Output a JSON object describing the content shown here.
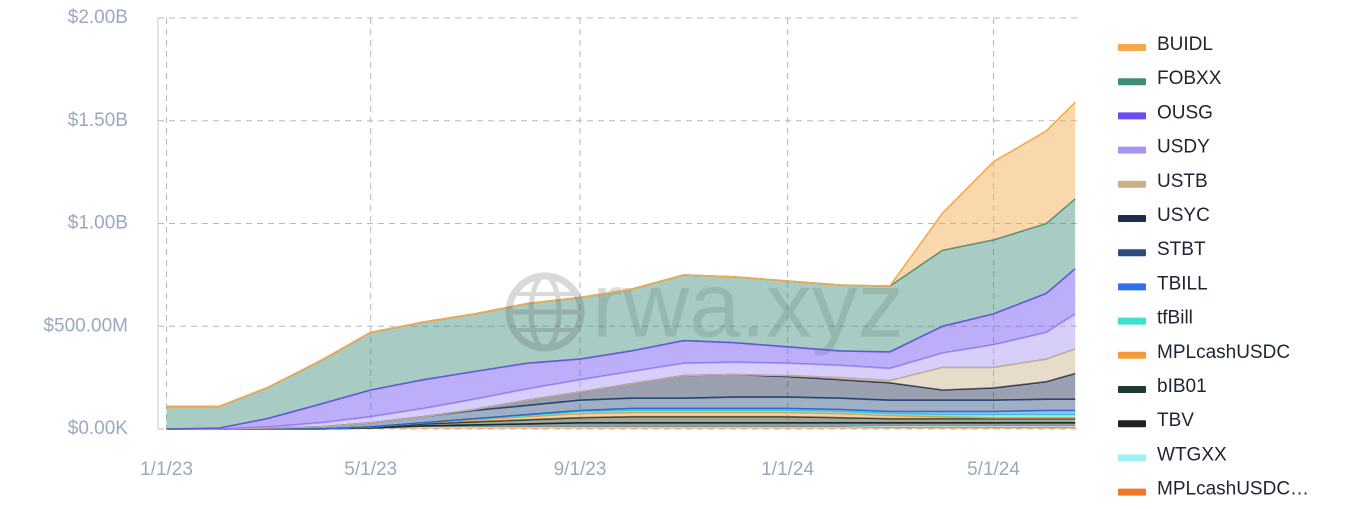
{
  "chart_data": {
    "type": "stacked_area",
    "watermark": "rwa.xyz",
    "x": [
      "1/1/23",
      "2/1/23",
      "3/1/23",
      "4/1/23",
      "5/1/23",
      "6/1/23",
      "7/1/23",
      "8/1/23",
      "9/1/23",
      "10/1/23",
      "11/1/23",
      "12/1/23",
      "1/1/24",
      "2/1/24",
      "3/1/24",
      "4/1/24",
      "5/1/24",
      "6/1/24",
      "6/18/24"
    ],
    "xlim": [
      "12/27/22",
      "6/22/24"
    ],
    "xticks": [
      "1/1/23",
      "5/1/23",
      "9/1/23",
      "1/1/24",
      "5/1/24"
    ],
    "ylim": [
      0,
      2000000000
    ],
    "yticks": [
      {
        "value": 0,
        "label": "$0.00K"
      },
      {
        "value": 500000000,
        "label": "$500.00M"
      },
      {
        "value": 1000000000,
        "label": "$1.00B"
      },
      {
        "value": 1500000000,
        "label": "$1.50B"
      },
      {
        "value": 2000000000,
        "label": "$2.00B"
      }
    ],
    "grid": true,
    "legend": "right",
    "series": [
      {
        "name": "BUIDL",
        "color": "#f5a94a",
        "values": [
          0,
          0,
          0,
          0,
          0,
          0,
          0,
          0,
          0,
          0,
          0,
          0,
          0,
          0,
          0,
          180000000.0,
          380000000.0,
          450000000.0,
          470000000.0
        ]
      },
      {
        "name": "FOBXX",
        "color": "#3f8c79",
        "values": [
          110000000.0,
          105000000.0,
          150000000.0,
          210000000.0,
          280000000.0,
          280000000.0,
          280000000.0,
          290000000.0,
          300000000.0,
          300000000.0,
          320000000.0,
          320000000.0,
          320000000.0,
          320000000.0,
          320000000.0,
          370000000.0,
          360000000.0,
          340000000.0,
          340000000.0
        ]
      },
      {
        "name": "OUSG",
        "color": "#6b4cf0",
        "values": [
          0,
          5000000.0,
          40000000.0,
          90000000.0,
          130000000.0,
          140000000.0,
          135000000.0,
          125000000.0,
          100000000.0,
          100000000.0,
          110000000.0,
          95000000.0,
          80000000.0,
          70000000.0,
          80000000.0,
          130000000.0,
          150000000.0,
          190000000.0,
          220000000.0
        ]
      },
      {
        "name": "USDY",
        "color": "#a792f5",
        "values": [
          0,
          0,
          5000000.0,
          20000000.0,
          30000000.0,
          40000000.0,
          50000000.0,
          55000000.0,
          60000000.0,
          60000000.0,
          60000000.0,
          60000000.0,
          60000000.0,
          60000000.0,
          60000000.0,
          70000000.0,
          110000000.0,
          130000000.0,
          170000000.0
        ]
      },
      {
        "name": "USTB",
        "color": "#c9b089",
        "values": [
          0,
          0,
          0,
          0,
          0,
          0,
          0,
          0,
          0,
          0,
          0,
          0,
          5000000.0,
          10000000.0,
          10000000.0,
          110000000.0,
          100000000.0,
          110000000.0,
          120000000.0
        ]
      },
      {
        "name": "USYC",
        "color": "#1f2d4e",
        "values": [
          0,
          0,
          0,
          0,
          0,
          0,
          5000000.0,
          25000000.0,
          40000000.0,
          70000000.0,
          110000000.0,
          110000000.0,
          100000000.0,
          90000000.0,
          85000000.0,
          50000000.0,
          60000000.0,
          85000000.0,
          125000000.0
        ]
      },
      {
        "name": "STBT",
        "color": "#2b4f7c",
        "values": [
          0,
          0,
          5000000.0,
          10000000.0,
          20000000.0,
          30000000.0,
          40000000.0,
          45000000.0,
          50000000.0,
          50000000.0,
          50000000.0,
          55000000.0,
          55000000.0,
          55000000.0,
          55000000.0,
          55000000.0,
          55000000.0,
          55000000.0,
          55000000.0
        ]
      },
      {
        "name": "TBILL",
        "color": "#2f6ff0",
        "values": [
          0,
          0,
          0,
          0,
          0,
          0,
          0,
          5000000.0,
          5000000.0,
          10000000.0,
          10000000.0,
          10000000.0,
          10000000.0,
          10000000.0,
          10000000.0,
          15000000.0,
          15000000.0,
          20000000.0,
          20000000.0
        ]
      },
      {
        "name": "tfBill",
        "color": "#3fe0d0",
        "values": [
          0,
          0,
          0,
          0,
          0,
          0,
          5000000.0,
          5000000.0,
          10000000.0,
          10000000.0,
          10000000.0,
          10000000.0,
          10000000.0,
          10000000.0,
          10000000.0,
          10000000.0,
          15000000.0,
          15000000.0,
          15000000.0
        ]
      },
      {
        "name": "MPLcashUSDC",
        "color": "#f59a3a",
        "values": [
          0,
          0,
          0,
          0,
          0,
          5000000.0,
          10000000.0,
          15000000.0,
          20000000.0,
          20000000.0,
          20000000.0,
          20000000.0,
          20000000.0,
          20000000.0,
          15000000.0,
          10000000.0,
          5000000.0,
          5000000.0,
          5000000.0
        ]
      },
      {
        "name": "bIB01",
        "color": "#1e3a2e",
        "values": [
          0,
          0,
          0,
          0,
          5000000.0,
          10000000.0,
          15000000.0,
          20000000.0,
          25000000.0,
          30000000.0,
          30000000.0,
          30000000.0,
          30000000.0,
          25000000.0,
          20000000.0,
          20000000.0,
          20000000.0,
          20000000.0,
          20000000.0
        ]
      },
      {
        "name": "TBV",
        "color": "#222222",
        "values": [
          0,
          0,
          0,
          0,
          0,
          5000000.0,
          10000000.0,
          15000000.0,
          20000000.0,
          20000000.0,
          20000000.0,
          20000000.0,
          20000000.0,
          20000000.0,
          15000000.0,
          15000000.0,
          15000000.0,
          15000000.0,
          15000000.0
        ]
      },
      {
        "name": "WTGXX",
        "color": "#a0f0f8",
        "values": [
          0,
          0,
          0,
          0,
          0,
          0,
          0,
          0,
          0,
          0,
          0,
          0,
          0,
          0,
          5000000.0,
          5000000.0,
          5000000.0,
          5000000.0,
          5000000.0
        ]
      },
      {
        "name": "MPLcashUSDC…",
        "color": "#f07a2a",
        "values": [
          0,
          0,
          0,
          0,
          5000000.0,
          10000000.0,
          10000000.0,
          10000000.0,
          10000000.0,
          10000000.0,
          10000000.0,
          10000000.0,
          10000000.0,
          10000000.0,
          10000000.0,
          10000000.0,
          10000000.0,
          10000000.0,
          10000000.0
        ]
      }
    ]
  }
}
